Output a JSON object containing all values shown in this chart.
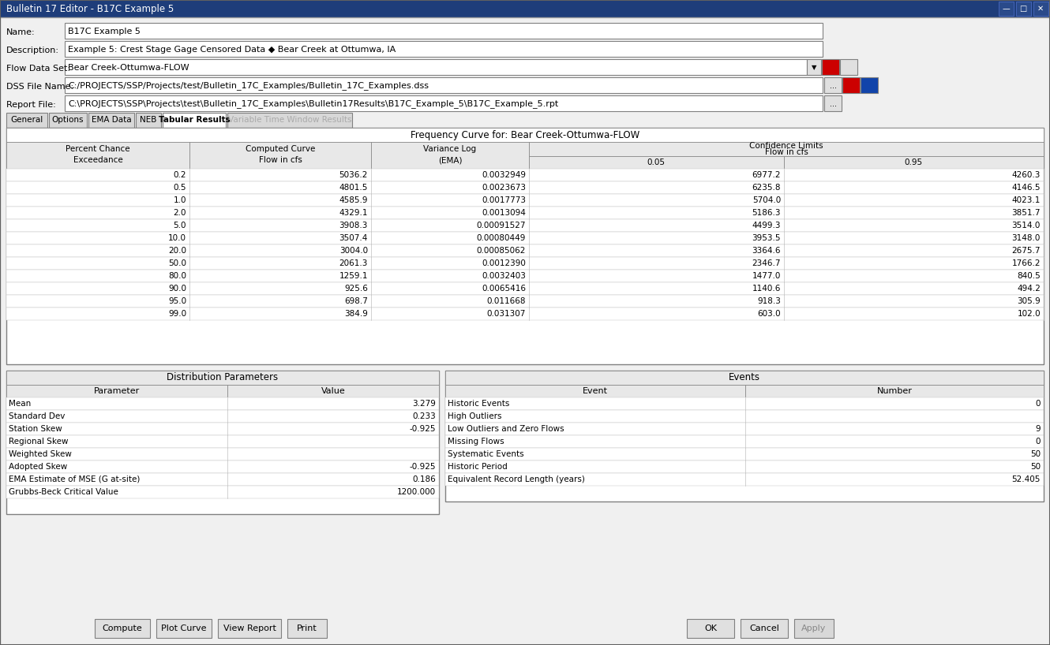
{
  "title_bar": "Bulletin 17 Editor - B17C Example 5",
  "name_value": "B17C Example 5",
  "description_value": "Example 5: Crest Stage Gage Censored Data ◆ Bear Creek at Ottumwa, IA",
  "flow_data_set": "Bear Creek-Ottumwa-FLOW",
  "dss_file": "C:/PROJECTS/SSP/Projects/test/Bulletin_17C_Examples/Bulletin_17C_Examples.dss",
  "report_file": "C:\\PROJECTS\\SSP\\Projects\\test\\Bulletin_17C_Examples\\Bulletin17Results\\B17C_Example_5\\B17C_Example_5.rpt",
  "tabs": [
    "General",
    "Options",
    "EMA Data",
    "NEB",
    "Tabular Results",
    "Variable Time Window Results"
  ],
  "active_tab": "Tabular Results",
  "freq_table_title": "Frequency Curve for: Bear Creek-Ottumwa-FLOW",
  "freq_data": [
    [
      0.2,
      5036.2,
      0.0032949,
      6977.2,
      4260.3
    ],
    [
      0.5,
      4801.5,
      0.0023673,
      6235.8,
      4146.5
    ],
    [
      1.0,
      4585.9,
      0.0017773,
      5704.0,
      4023.1
    ],
    [
      2.0,
      4329.1,
      0.0013094,
      5186.3,
      3851.7
    ],
    [
      5.0,
      3908.3,
      0.00091527,
      4499.3,
      3514.0
    ],
    [
      10.0,
      3507.4,
      0.00080449,
      3953.5,
      3148.0
    ],
    [
      20.0,
      3004.0,
      0.00085062,
      3364.6,
      2675.7
    ],
    [
      50.0,
      2061.3,
      0.001239,
      2346.7,
      1766.2
    ],
    [
      80.0,
      1259.1,
      0.0032403,
      1477.0,
      840.5
    ],
    [
      90.0,
      925.6,
      0.0065416,
      1140.6,
      494.2
    ],
    [
      95.0,
      698.7,
      0.011668,
      918.3,
      305.9
    ],
    [
      99.0,
      384.9,
      0.031307,
      603.0,
      102.0
    ]
  ],
  "freq_data_str": [
    [
      "0.2",
      "5036.2",
      "0.0032949",
      "6977.2",
      "4260.3"
    ],
    [
      "0.5",
      "4801.5",
      "0.0023673",
      "6235.8",
      "4146.5"
    ],
    [
      "1.0",
      "4585.9",
      "0.0017773",
      "5704.0",
      "4023.1"
    ],
    [
      "2.0",
      "4329.1",
      "0.0013094",
      "5186.3",
      "3851.7"
    ],
    [
      "5.0",
      "3908.3",
      "0.00091527",
      "4499.3",
      "3514.0"
    ],
    [
      "10.0",
      "3507.4",
      "0.00080449",
      "3953.5",
      "3148.0"
    ],
    [
      "20.0",
      "3004.0",
      "0.00085062",
      "3364.6",
      "2675.7"
    ],
    [
      "50.0",
      "2061.3",
      "0.0012390",
      "2346.7",
      "1766.2"
    ],
    [
      "80.0",
      "1259.1",
      "0.0032403",
      "1477.0",
      "840.5"
    ],
    [
      "90.0",
      "925.6",
      "0.0065416",
      "1140.6",
      "494.2"
    ],
    [
      "95.0",
      "698.7",
      "0.011668",
      "918.3",
      "305.9"
    ],
    [
      "99.0",
      "384.9",
      "0.031307",
      "603.0",
      "102.0"
    ]
  ],
  "dist_params_title": "Distribution Parameters",
  "dist_param_col1": "Parameter",
  "dist_param_col2": "Value",
  "dist_params": [
    [
      "Mean",
      "3.279"
    ],
    [
      "Standard Dev",
      "0.233"
    ],
    [
      "Station Skew",
      "-0.925"
    ],
    [
      "Regional Skew",
      ""
    ],
    [
      "Weighted Skew",
      ""
    ],
    [
      "Adopted Skew",
      "-0.925"
    ],
    [
      "EMA Estimate of MSE (G at-site)",
      "0.186"
    ],
    [
      "Grubbs-Beck Critical Value",
      "1200.000"
    ]
  ],
  "events_title": "Events",
  "events_col1": "Event",
  "events_col2": "Number",
  "events_data": [
    [
      "Historic Events",
      "0"
    ],
    [
      "High Outliers",
      ""
    ],
    [
      "Low Outliers and Zero Flows",
      "9"
    ],
    [
      "Missing Flows",
      "0"
    ],
    [
      "Systematic Events",
      "50"
    ],
    [
      "Historic Period",
      "50"
    ],
    [
      "Equivalent Record Length (years)",
      "52.405"
    ]
  ],
  "buttons_left": [
    "Compute",
    "Plot Curve",
    "View Report",
    "Print"
  ],
  "buttons_right": [
    "OK",
    "Cancel",
    "Apply"
  ],
  "bg_color": "#f0f0f0",
  "white": "#ffffff",
  "header_bg": "#e8e8e8",
  "titlebar_bg": "#1e3d7a",
  "button_bg": "#e0e0e0",
  "border_dark": "#808080",
  "border_light": "#c0c0c0"
}
